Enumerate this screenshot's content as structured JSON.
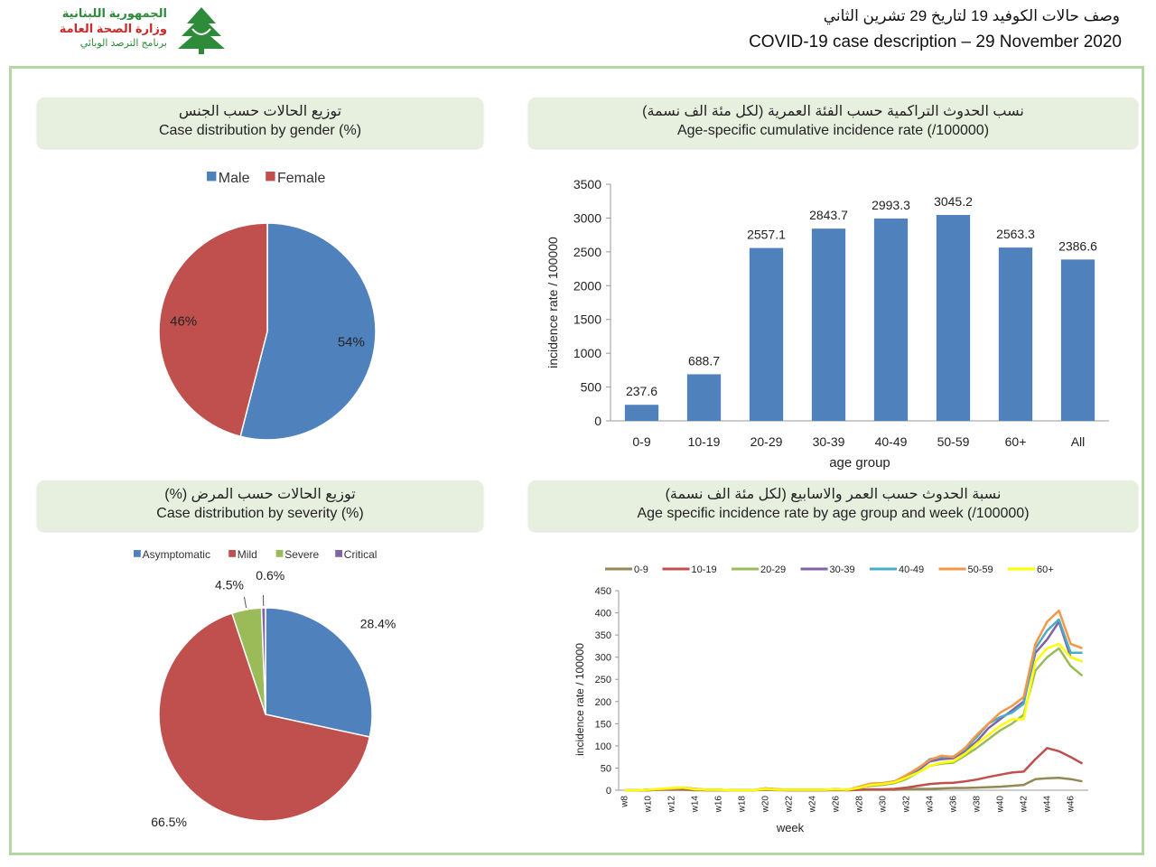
{
  "header": {
    "logo": {
      "line1": "الجمهورية اللبنانية",
      "line2": "وزارة الصحة العامة",
      "line3": "برنامج الترصد الوبائي"
    },
    "title_ar": "وصف حالات الكوفيد 19 لتاريخ 29 تشرين الثاني",
    "title_en": "COVID-19 case description – 29 November 2020"
  },
  "colors": {
    "frame": "#b5d7a3",
    "panel_title_bg": "#e7efdf",
    "blue": "#4f81bd",
    "red": "#c0504d",
    "green": "#9bbb59",
    "purple": "#8064a2"
  },
  "panels": {
    "gender": {
      "title_ar": "توزيع الحالات حسب الجنس",
      "title_en": "Case distribution by gender (%)"
    },
    "incidence": {
      "title_ar": "نسب الحدوث التراكمية حسب الفئة العمرية (لكل مئة الف نسمة)",
      "title_en": "Age-specific cumulative incidence rate (/100000)"
    },
    "severity": {
      "title_ar": "توزيع الحالات حسب المرض (%)",
      "title_en": "Case distribution by severity (%)"
    },
    "weekly": {
      "title_ar": "نسبة الحدوث حسب العمر والاسابيع (لكل مئة الف نسمة)",
      "title_en": "Age specific incidence rate by age group and week (/100000)"
    }
  },
  "chart_data": [
    {
      "id": "gender",
      "type": "pie",
      "legend_position": "top",
      "categories": [
        "Male",
        "Female"
      ],
      "values": [
        54,
        46
      ],
      "labels": [
        "54%",
        "46%"
      ],
      "colors": [
        "#4f81bd",
        "#c0504d"
      ]
    },
    {
      "id": "incidence",
      "type": "bar",
      "categories": [
        "0-9",
        "10-19",
        "20-29",
        "30-39",
        "40-49",
        "50-59",
        "60+",
        "All"
      ],
      "values": [
        237.6,
        688.7,
        2557.1,
        2843.7,
        2993.3,
        3045.2,
        2563.3,
        2386.6
      ],
      "value_labels": [
        "237.6",
        "688.7",
        "2557.1",
        "2843.7",
        "2993.3",
        "3045.2",
        "2563.3",
        "2386.6"
      ],
      "xlabel": "age group",
      "ylabel": "incidence rate / 100000",
      "ylim": [
        0,
        3500
      ],
      "yticks": [
        "0",
        "500",
        "1000",
        "1500",
        "2000",
        "2500",
        "3000",
        "3500"
      ],
      "color": "#4f81bd"
    },
    {
      "id": "severity",
      "type": "pie",
      "legend_position": "top",
      "categories": [
        "Asymptomatic",
        "Mild",
        "Severe",
        "Critical"
      ],
      "values": [
        28.4,
        66.5,
        4.5,
        0.6
      ],
      "labels": [
        "28.4%",
        "66.5%",
        "4.5%",
        "0.6%"
      ],
      "colors": [
        "#4f81bd",
        "#c0504d",
        "#9bbb59",
        "#8064a2"
      ]
    },
    {
      "id": "weekly",
      "type": "line",
      "legend_position": "top",
      "xlabel": "week",
      "ylabel": "incidence rate / 100000",
      "ylim": [
        0,
        450
      ],
      "yticks": [
        "0",
        "50",
        "100",
        "150",
        "200",
        "250",
        "300",
        "350",
        "400",
        "450"
      ],
      "x": [
        "w8",
        "w9",
        "w10",
        "w11",
        "w12",
        "w13",
        "w14",
        "w15",
        "w16",
        "w17",
        "w18",
        "w19",
        "w20",
        "w21",
        "w22",
        "w23",
        "w24",
        "w25",
        "w26",
        "w27",
        "w28",
        "w29",
        "w30",
        "w31",
        "w32",
        "w33",
        "w34",
        "w35",
        "w36",
        "w37",
        "w38",
        "w39",
        "w40",
        "w41",
        "w42",
        "w43",
        "w44",
        "w45",
        "w46",
        "w47"
      ],
      "xtick_labels": [
        "w8",
        "w10",
        "w12",
        "w14",
        "w16",
        "w18",
        "w20",
        "w22",
        "w24",
        "w26",
        "w28",
        "w30",
        "w32",
        "w34",
        "w36",
        "w38",
        "w40",
        "w42",
        "w44",
        "w46"
      ],
      "series": [
        {
          "name": "0-9",
          "color": "#938953",
          "values": [
            0,
            0,
            0,
            1,
            1,
            1,
            0,
            0,
            0,
            0,
            0,
            0,
            1,
            0,
            0,
            0,
            0,
            0,
            0,
            0,
            1,
            1,
            1,
            1,
            2,
            3,
            3,
            4,
            5,
            5,
            6,
            7,
            8,
            10,
            12,
            25,
            27,
            28,
            25,
            20
          ]
        },
        {
          "name": "10-19",
          "color": "#c0504d",
          "values": [
            0,
            0,
            0,
            1,
            2,
            3,
            1,
            0,
            0,
            0,
            0,
            0,
            2,
            1,
            0,
            0,
            0,
            0,
            1,
            0,
            1,
            2,
            2,
            3,
            6,
            10,
            14,
            16,
            17,
            20,
            24,
            30,
            35,
            40,
            42,
            70,
            95,
            88,
            75,
            60
          ]
        },
        {
          "name": "20-29",
          "color": "#9bbb59",
          "values": [
            0,
            0,
            1,
            2,
            3,
            5,
            2,
            1,
            0,
            0,
            0,
            0,
            3,
            1,
            1,
            1,
            1,
            1,
            2,
            1,
            5,
            10,
            12,
            16,
            25,
            40,
            55,
            60,
            62,
            78,
            95,
            115,
            135,
            150,
            170,
            270,
            300,
            320,
            280,
            258
          ]
        },
        {
          "name": "30-39",
          "color": "#8064a2",
          "values": [
            0,
            0,
            1,
            2,
            4,
            5,
            2,
            1,
            1,
            0,
            0,
            0,
            4,
            2,
            1,
            1,
            1,
            1,
            2,
            1,
            6,
            12,
            14,
            18,
            30,
            45,
            65,
            70,
            72,
            88,
            110,
            140,
            160,
            180,
            200,
            310,
            340,
            380,
            300,
            290
          ]
        },
        {
          "name": "40-49",
          "color": "#4bacc6",
          "values": [
            0,
            0,
            1,
            2,
            4,
            6,
            3,
            1,
            1,
            0,
            0,
            0,
            4,
            2,
            1,
            1,
            1,
            1,
            2,
            1,
            7,
            14,
            16,
            20,
            32,
            48,
            70,
            75,
            76,
            92,
            120,
            150,
            165,
            175,
            195,
            320,
            360,
            385,
            310,
            310
          ]
        },
        {
          "name": "50-59",
          "color": "#f79646",
          "values": [
            0,
            0,
            1,
            2,
            4,
            6,
            3,
            1,
            1,
            0,
            0,
            0,
            4,
            2,
            1,
            1,
            1,
            1,
            2,
            1,
            8,
            15,
            16,
            20,
            34,
            50,
            68,
            78,
            75,
            95,
            125,
            150,
            175,
            190,
            210,
            330,
            380,
            405,
            330,
            320
          ]
        },
        {
          "name": "60+",
          "color": "#ffff00",
          "values": [
            0,
            0,
            1,
            3,
            5,
            6,
            2,
            1,
            1,
            0,
            0,
            0,
            3,
            1,
            1,
            1,
            1,
            1,
            2,
            1,
            6,
            12,
            14,
            18,
            28,
            40,
            55,
            62,
            65,
            82,
            105,
            125,
            145,
            160,
            160,
            290,
            320,
            330,
            300,
            290
          ]
        }
      ]
    }
  ]
}
